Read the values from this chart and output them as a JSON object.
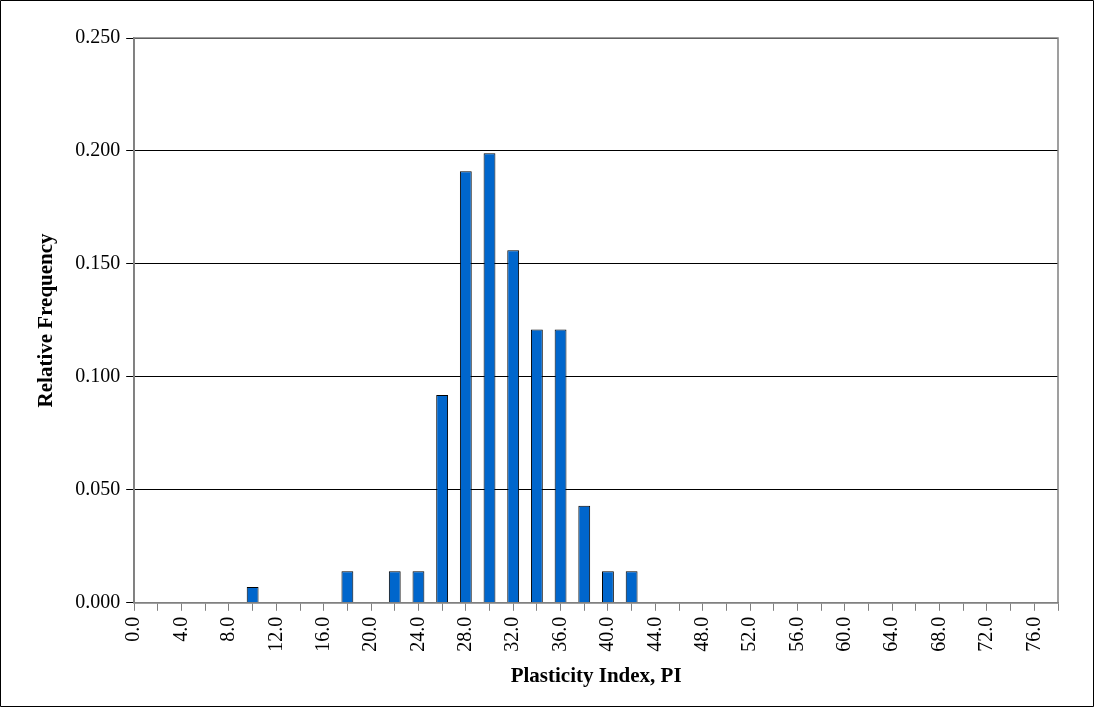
{
  "chart_data": {
    "type": "bar",
    "xlabel": "Plasticity Index, PI",
    "ylabel": "Relative Frequency",
    "categories": [
      "0.0",
      null,
      "4.0",
      null,
      "8.0",
      null,
      "12.0",
      null,
      "16.0",
      null,
      "20.0",
      null,
      "24.0",
      null,
      "28.0",
      null,
      "32.0",
      null,
      "36.0",
      null,
      "40.0",
      null,
      "44.0",
      null,
      "48.0",
      null,
      "52.0",
      null,
      "56.0",
      null,
      "60.0",
      null,
      "64.0",
      null,
      "68.0",
      null,
      "72.0",
      null,
      "76.0",
      null
    ],
    "values": [
      0,
      0,
      0,
      0,
      0,
      0.007,
      0,
      0,
      0,
      0.014,
      0,
      0.014,
      0.014,
      0.092,
      0.191,
      0.199,
      0.156,
      0.121,
      0.121,
      0.043,
      0.014,
      0.014,
      0,
      0,
      0,
      0,
      0,
      0,
      0,
      0,
      0,
      0,
      0,
      0,
      0,
      0,
      0,
      0,
      0,
      0
    ],
    "color": "#0066cc",
    "ylim": [
      0,
      0.25
    ],
    "yticks": [
      {
        "value": 0,
        "label": "0.000"
      },
      {
        "value": 0.05,
        "label": "0.050"
      },
      {
        "value": 0.1,
        "label": "0.100"
      },
      {
        "value": 0.15,
        "label": "0.150"
      },
      {
        "value": 0.2,
        "label": "0.200"
      },
      {
        "value": 0.25,
        "label": "0.250"
      }
    ],
    "grid": "y"
  }
}
